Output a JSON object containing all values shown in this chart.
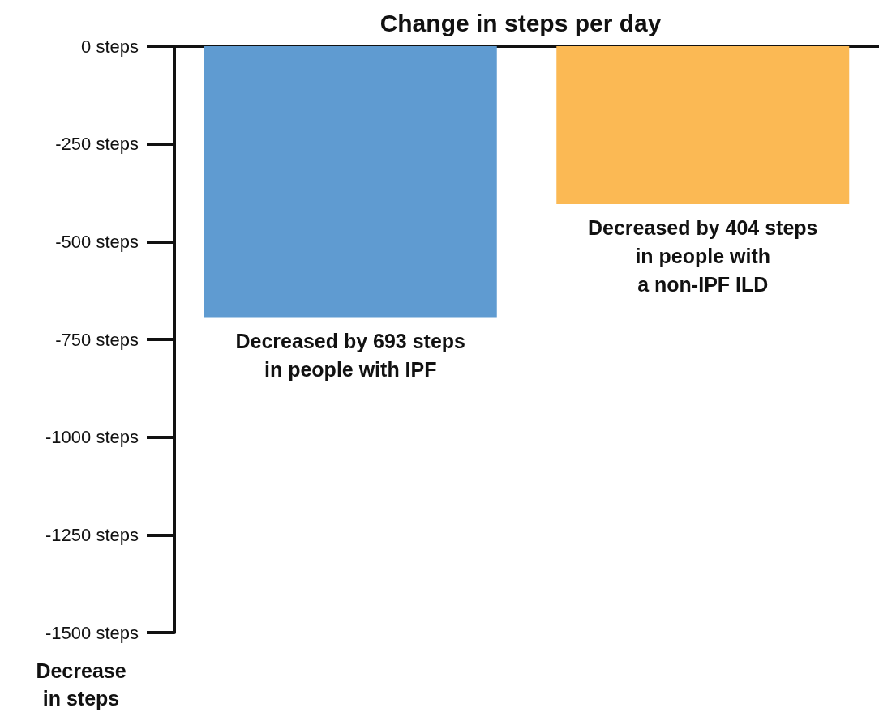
{
  "chart_data": {
    "type": "bar",
    "title": "Change in steps per day",
    "ylabel": "Decrease\nin steps",
    "categories": [
      null,
      null
    ],
    "series": [
      {
        "color": "#5f9bd1",
        "values": [
          -693,
          null
        ],
        "value_labels": [
          "Decreased by 693 steps\nin people with IPF",
          null
        ]
      },
      {
        "color": "#fbb954",
        "values": [
          null,
          -404
        ],
        "value_labels": [
          null,
          "Decreased by 404 steps\nin people with\na non-IPF ILD"
        ]
      }
    ],
    "ylim": [
      -1500,
      0
    ],
    "yticks": [
      {
        "value": 0,
        "label": "0 steps"
      },
      {
        "value": -250,
        "label": "-250 steps"
      },
      {
        "value": -500,
        "label": "-500 steps"
      },
      {
        "value": -750,
        "label": "-750 steps"
      },
      {
        "value": -1000,
        "label": "-1000 steps"
      },
      {
        "value": -1250,
        "label": "-1250 steps"
      },
      {
        "value": -1500,
        "label": "-1500 steps"
      }
    ],
    "grid": false,
    "tick_labels": "y"
  }
}
